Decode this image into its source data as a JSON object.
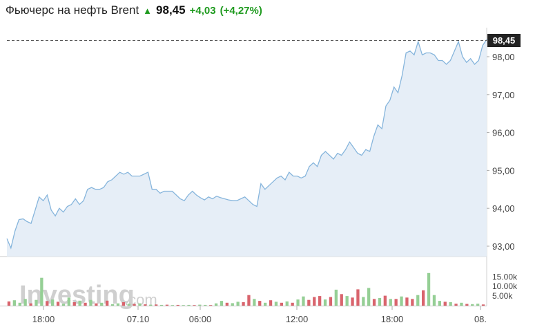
{
  "header": {
    "title": "Фьючерс на нефть Brent",
    "arrow_icon": "arrow-up-icon",
    "price": "98,45",
    "change": "+4,03",
    "change_pct": "(+4,27%)",
    "positive_color": "#1e9a1e"
  },
  "watermark": {
    "brand": "Investing",
    "suffix": ".com"
  },
  "chart_data": {
    "type": "area",
    "last_price_label": "98,45",
    "ylim": [
      92.7,
      99.0
    ],
    "y_ticks": [
      {
        "value": 93.0,
        "label": "93,00"
      },
      {
        "value": 94.0,
        "label": "94,00"
      },
      {
        "value": 95.0,
        "label": "95,00"
      },
      {
        "value": 96.0,
        "label": "96,00"
      },
      {
        "value": 97.0,
        "label": "97,00"
      },
      {
        "value": 98.0,
        "label": "98,00"
      }
    ],
    "x_ticks": [
      "18:00",
      "07.10",
      "06:00",
      "12:00",
      "18:00",
      "08."
    ],
    "volume_ticks": [
      {
        "value": 5000,
        "label": "5.00k"
      },
      {
        "value": 10000,
        "label": "10.00k"
      },
      {
        "value": 15000,
        "label": "15.00k"
      }
    ],
    "volume_max": 18000,
    "line_color": "#86b5dc",
    "fill_color": "#e6eef7",
    "up_color": "#95cf95",
    "down_color": "#d9646d",
    "price": [
      93.2,
      92.95,
      93.4,
      93.7,
      93.72,
      93.65,
      93.6,
      93.95,
      94.3,
      94.2,
      94.35,
      93.95,
      93.8,
      94.0,
      93.9,
      94.05,
      94.1,
      94.25,
      94.1,
      94.2,
      94.5,
      94.55,
      94.5,
      94.5,
      94.55,
      94.7,
      94.75,
      94.85,
      94.95,
      94.9,
      94.95,
      94.85,
      94.85,
      94.85,
      94.9,
      94.95,
      94.5,
      94.5,
      94.4,
      94.45,
      94.45,
      94.45,
      94.35,
      94.25,
      94.2,
      94.35,
      94.45,
      94.35,
      94.28,
      94.22,
      94.3,
      94.25,
      94.32,
      94.28,
      94.25,
      94.22,
      94.2,
      94.2,
      94.25,
      94.3,
      94.2,
      94.1,
      94.05,
      94.65,
      94.5,
      94.6,
      94.7,
      94.8,
      94.85,
      94.75,
      94.95,
      94.85,
      94.85,
      94.8,
      94.85,
      95.1,
      95.2,
      95.1,
      95.4,
      95.5,
      95.4,
      95.3,
      95.45,
      95.4,
      95.55,
      95.75,
      95.6,
      95.45,
      95.4,
      95.55,
      95.5,
      95.9,
      96.2,
      96.1,
      96.7,
      96.85,
      97.2,
      97.05,
      97.5,
      98.1,
      98.15,
      98.05,
      98.4,
      98.05,
      98.1,
      98.1,
      98.05,
      97.9,
      97.9,
      97.8,
      97.9,
      98.15,
      98.4,
      98.0,
      97.85,
      97.95,
      97.8,
      97.9,
      98.3,
      98.45
    ],
    "volume": [
      {
        "v": 2200,
        "up": false
      },
      {
        "v": 2800,
        "up": true
      },
      {
        "v": 1500,
        "up": true
      },
      {
        "v": 3500,
        "up": true
      },
      {
        "v": 1200,
        "up": false
      },
      {
        "v": 3000,
        "up": true
      },
      {
        "v": 14500,
        "up": true
      },
      {
        "v": 2400,
        "up": false
      },
      {
        "v": 3200,
        "up": true
      },
      {
        "v": 2000,
        "up": false
      },
      {
        "v": 1000,
        "up": true
      },
      {
        "v": 4200,
        "up": true
      },
      {
        "v": 1800,
        "up": false
      },
      {
        "v": 2600,
        "up": true
      },
      {
        "v": 1500,
        "up": false
      },
      {
        "v": 3000,
        "up": true
      },
      {
        "v": 1200,
        "up": false
      },
      {
        "v": 1500,
        "up": true
      },
      {
        "v": 2600,
        "up": false
      },
      {
        "v": 800,
        "up": true
      },
      {
        "v": 1200,
        "up": true
      },
      {
        "v": 1800,
        "up": false
      },
      {
        "v": 1000,
        "up": true
      },
      {
        "v": 900,
        "up": false
      },
      {
        "v": 1200,
        "up": true
      },
      {
        "v": 700,
        "up": false
      },
      {
        "v": 500,
        "up": true
      },
      {
        "v": 600,
        "up": false
      },
      {
        "v": 400,
        "up": true
      },
      {
        "v": 500,
        "up": false
      },
      {
        "v": 300,
        "up": true
      },
      {
        "v": 400,
        "up": false
      },
      {
        "v": 300,
        "up": true
      },
      {
        "v": 400,
        "up": true
      },
      {
        "v": 300,
        "up": false
      },
      {
        "v": 500,
        "up": true
      },
      {
        "v": 400,
        "up": true
      },
      {
        "v": 300,
        "up": false
      },
      {
        "v": 1200,
        "up": true
      },
      {
        "v": 2500,
        "up": true
      },
      {
        "v": 1500,
        "up": false
      },
      {
        "v": 1300,
        "up": true
      },
      {
        "v": 2000,
        "up": true
      },
      {
        "v": 1800,
        "up": false
      },
      {
        "v": 5500,
        "up": false
      },
      {
        "v": 3500,
        "up": true
      },
      {
        "v": 2500,
        "up": false
      },
      {
        "v": 1500,
        "up": true
      },
      {
        "v": 2800,
        "up": false
      },
      {
        "v": 2000,
        "up": true
      },
      {
        "v": 1500,
        "up": false
      },
      {
        "v": 2200,
        "up": true
      },
      {
        "v": 1500,
        "up": false
      },
      {
        "v": 3200,
        "up": true
      },
      {
        "v": 4800,
        "up": true
      },
      {
        "v": 3000,
        "up": false
      },
      {
        "v": 4500,
        "up": false
      },
      {
        "v": 5000,
        "up": false
      },
      {
        "v": 3200,
        "up": true
      },
      {
        "v": 4500,
        "up": false
      },
      {
        "v": 8300,
        "up": true
      },
      {
        "v": 6000,
        "up": false
      },
      {
        "v": 5000,
        "up": true
      },
      {
        "v": 4200,
        "up": false
      },
      {
        "v": 8500,
        "up": false
      },
      {
        "v": 4500,
        "up": true
      },
      {
        "v": 9200,
        "up": true
      },
      {
        "v": 3500,
        "up": false
      },
      {
        "v": 4000,
        "up": true
      },
      {
        "v": 5200,
        "up": false
      },
      {
        "v": 3500,
        "up": true
      },
      {
        "v": 3500,
        "up": false
      },
      {
        "v": 4800,
        "up": true
      },
      {
        "v": 4200,
        "up": false
      },
      {
        "v": 3500,
        "up": false
      },
      {
        "v": 5500,
        "up": true
      },
      {
        "v": 8000,
        "up": false
      },
      {
        "v": 17000,
        "up": true
      },
      {
        "v": 5500,
        "up": true
      },
      {
        "v": 2500,
        "up": true
      },
      {
        "v": 2000,
        "up": false
      },
      {
        "v": 1800,
        "up": true
      },
      {
        "v": 1000,
        "up": false
      },
      {
        "v": 1500,
        "up": true
      },
      {
        "v": 900,
        "up": false
      },
      {
        "v": 800,
        "up": true
      },
      {
        "v": 1000,
        "up": true
      },
      {
        "v": 600,
        "up": false
      }
    ]
  }
}
